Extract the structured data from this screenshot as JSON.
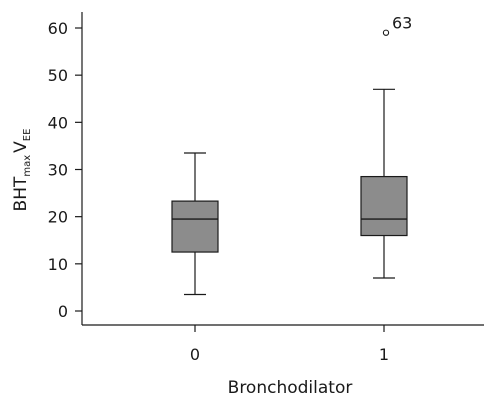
{
  "chart_data": {
    "type": "box",
    "xlabel": "Bronchodilator",
    "ylabel": {
      "main": "BHT",
      "sub1": "max",
      "main2": "V",
      "sub2": "EE"
    },
    "ylim": [
      0,
      60
    ],
    "yticks": [
      "0",
      "10",
      "20",
      "30",
      "40",
      "50",
      "60"
    ],
    "categories": [
      "0",
      "1"
    ],
    "boxes": [
      {
        "category": "0",
        "whisker_low": 3.5,
        "q1": 12.5,
        "median": 19.5,
        "q3": 23.3,
        "whisker_high": 33.5,
        "outliers": []
      },
      {
        "category": "1",
        "whisker_low": 7,
        "q1": 16,
        "median": 19.5,
        "q3": 28.5,
        "whisker_high": 47,
        "outliers": [
          {
            "value": 59,
            "label": "63"
          }
        ]
      }
    ],
    "box_fill": "#8c8c8c",
    "line_color": "#1a1a1a",
    "grid": false,
    "legend": "none"
  }
}
